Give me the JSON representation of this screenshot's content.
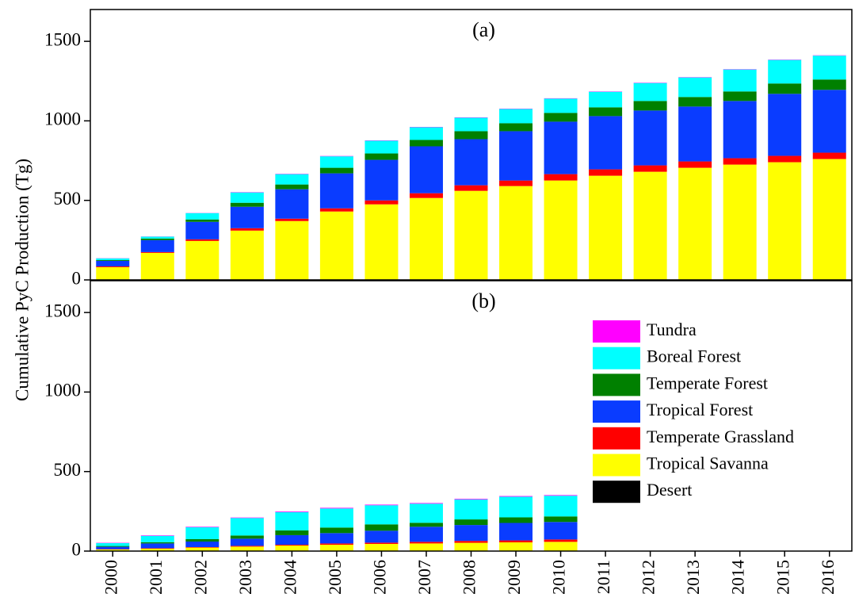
{
  "chart_data": [
    {
      "type": "stacked_bar",
      "panel_label": "(a)",
      "ylabel": "Cumulative PyC Production (Tg)",
      "ylim": [
        0,
        1700
      ],
      "yticks": [
        0,
        500,
        1000,
        1500
      ],
      "series": [
        {
          "color": "#000000",
          "values": [
            0,
            0,
            0,
            0,
            0,
            0,
            3,
            3,
            3,
            3,
            3,
            3,
            3,
            3,
            3,
            3,
            3
          ]
        },
        {
          "color": "#ffff00",
          "values": [
            80,
            170,
            245,
            310,
            370,
            430,
            472,
            512,
            557,
            587,
            622,
            652,
            677,
            702,
            722,
            737,
            757
          ]
        },
        {
          "color": "#ff0000",
          "values": [
            5,
            5,
            10,
            15,
            15,
            20,
            25,
            30,
            35,
            35,
            40,
            40,
            40,
            40,
            40,
            40,
            40
          ]
        },
        {
          "color": "#0a3cff",
          "values": [
            35,
            75,
            110,
            135,
            185,
            220,
            255,
            295,
            290,
            310,
            330,
            335,
            345,
            345,
            360,
            390,
            395
          ]
        },
        {
          "color": "#008000",
          "values": [
            5,
            10,
            15,
            25,
            30,
            35,
            40,
            40,
            50,
            50,
            55,
            55,
            60,
            60,
            60,
            65,
            65
          ]
        },
        {
          "color": "#00ffff",
          "values": [
            10,
            12,
            40,
            65,
            65,
            72,
            80,
            80,
            85,
            90,
            90,
            98,
            113,
            123,
            138,
            148,
            150
          ]
        },
        {
          "color": "#ff00ff",
          "values": [
            1,
            1,
            1,
            2,
            2,
            2,
            2,
            2,
            2,
            2,
            2,
            2,
            2,
            2,
            2,
            2,
            2
          ]
        }
      ]
    },
    {
      "type": "stacked_bar",
      "panel_label": "(b)",
      "categories": [
        "2000",
        "2001",
        "2002",
        "2003",
        "2004",
        "2005",
        "2006",
        "2007",
        "2008",
        "2009",
        "2010",
        "2011",
        "2012",
        "2013",
        "2014",
        "2015",
        "2016"
      ],
      "ylim": [
        0,
        1700
      ],
      "yticks": [
        0,
        500,
        1000,
        1500
      ],
      "series": [
        {
          "name": "Desert",
          "color": "#000000",
          "values": [
            0,
            0,
            0,
            0,
            0,
            0,
            0,
            0,
            0,
            0,
            0,
            null,
            null,
            null,
            null,
            null,
            null
          ]
        },
        {
          "name": "Tropical Savanna",
          "color": "#ffff00",
          "values": [
            10,
            15,
            22,
            28,
            35,
            40,
            45,
            48,
            52,
            55,
            58,
            null,
            null,
            null,
            null,
            null,
            null
          ]
        },
        {
          "name": "Temperate Grassland",
          "color": "#ff0000",
          "values": [
            2,
            3,
            3,
            5,
            5,
            8,
            8,
            10,
            12,
            12,
            15,
            null,
            null,
            null,
            null,
            null,
            null
          ]
        },
        {
          "name": "Tropical Forest",
          "color": "#0a3cff",
          "values": [
            15,
            30,
            35,
            45,
            60,
            65,
            75,
            95,
            100,
            110,
            110,
            null,
            null,
            null,
            null,
            null,
            null
          ]
        },
        {
          "name": "Temperate Forest",
          "color": "#008000",
          "values": [
            5,
            8,
            15,
            20,
            30,
            35,
            40,
            25,
            35,
            35,
            35,
            null,
            null,
            null,
            null,
            null,
            null
          ]
        },
        {
          "name": "Boreal Forest",
          "color": "#00ffff",
          "values": [
            18,
            40,
            75,
            110,
            115,
            120,
            120,
            120,
            125,
            130,
            130,
            null,
            null,
            null,
            null,
            null,
            null
          ]
        },
        {
          "name": "Tundra",
          "color": "#ff00ff",
          "values": [
            2,
            3,
            3,
            3,
            4,
            4,
            4,
            4,
            4,
            4,
            4,
            null,
            null,
            null,
            null,
            null,
            null
          ]
        }
      ]
    }
  ]
}
